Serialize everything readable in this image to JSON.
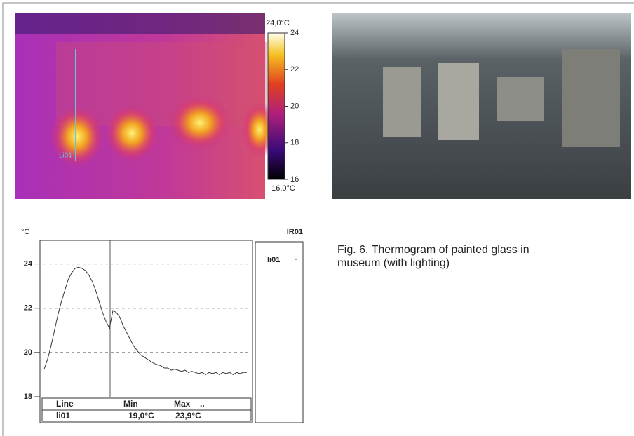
{
  "thermogram": {
    "line_label": "Li01",
    "colorbar": {
      "max_label": "24,0°C",
      "min_label": "16,0°C",
      "lim": [
        16,
        24
      ],
      "ticks": [
        16,
        18,
        20,
        22,
        24
      ]
    }
  },
  "chart_data": {
    "type": "line",
    "y_label": "°C",
    "ylim": [
      18,
      25
    ],
    "yticks": [
      18,
      20,
      22,
      24
    ],
    "grid": true,
    "series": [
      {
        "name": "li01",
        "color": "#333333",
        "values": [
          19.25,
          19.7,
          20.3,
          21.0,
          21.7,
          22.3,
          22.8,
          23.3,
          23.6,
          23.8,
          23.85,
          23.8,
          23.7,
          23.5,
          23.2,
          22.8,
          22.3,
          21.8,
          21.4,
          21.1,
          21.9,
          21.8,
          21.6,
          21.2,
          20.9,
          20.6,
          20.3,
          20.1,
          19.9,
          19.8,
          19.7,
          19.6,
          19.5,
          19.45,
          19.4,
          19.3,
          19.3,
          19.2,
          19.25,
          19.2,
          19.15,
          19.2,
          19.1,
          19.15,
          19.1,
          19.05,
          19.1,
          19.0,
          19.1,
          19.05,
          19.1,
          19.0,
          19.1,
          19.05,
          19.1,
          19.0,
          19.1,
          19.05,
          19.1,
          19.1
        ]
      }
    ]
  },
  "legend_panel": {
    "title": "IR01",
    "entry": "li01",
    "marker": "-"
  },
  "table": {
    "header": [
      "Line",
      "Min",
      "Max",
      ".."
    ],
    "rows": [
      [
        "li01",
        "19,0°C",
        "23,9°C"
      ]
    ]
  },
  "caption": "Fig. 6. Thermogram of painted glass in museum (with lighting)"
}
